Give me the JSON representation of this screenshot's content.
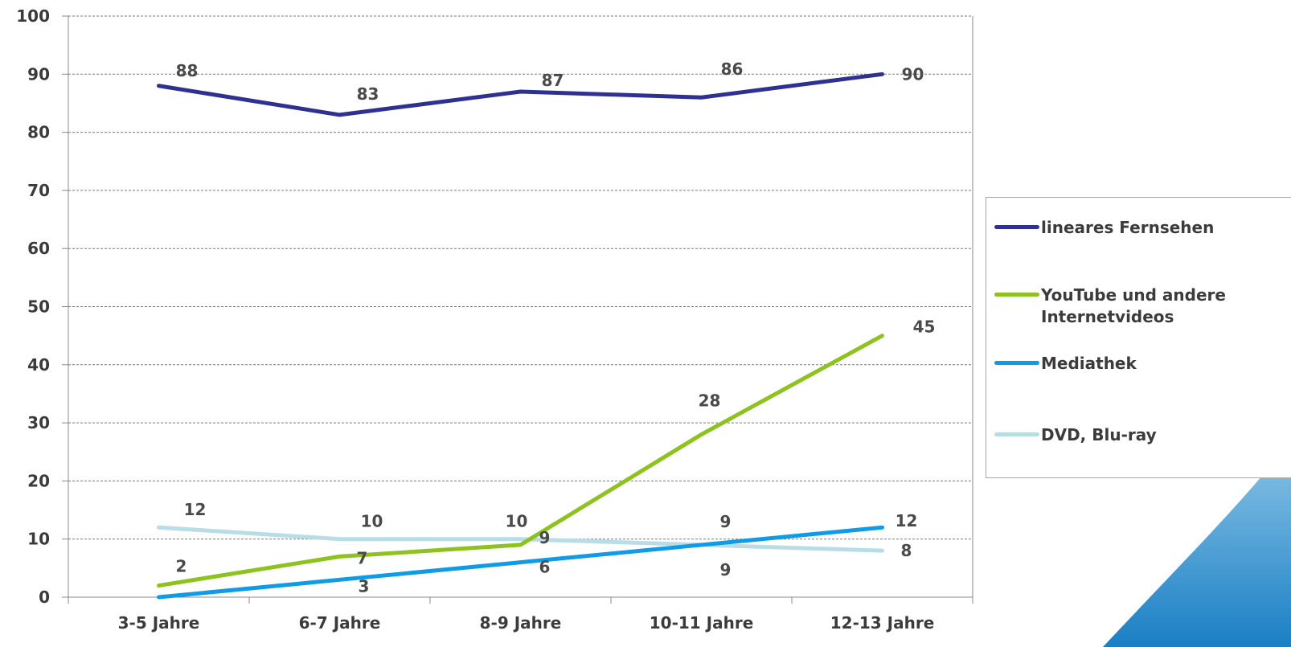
{
  "chart_data": {
    "type": "line",
    "categories": [
      "3-5 Jahre",
      "6-7 Jahre",
      "8-9 Jahre",
      "10-11 Jahre",
      "12-13 Jahre"
    ],
    "ylim": [
      0,
      100
    ],
    "yticks": [
      0,
      10,
      20,
      30,
      40,
      50,
      60,
      70,
      80,
      90,
      100
    ],
    "grid": true,
    "legend_position": "right",
    "series": [
      {
        "name": "lineares Fernsehen",
        "color": "#2e3192",
        "values": [
          88,
          83,
          87,
          86,
          90
        ]
      },
      {
        "name": "YouTube und andere Internetvideos",
        "color": "#8dc21f",
        "values": [
          2,
          7,
          9,
          28,
          45
        ]
      },
      {
        "name": "Mediathek",
        "color": "#0f9be6",
        "values": [
          0,
          3,
          6,
          9,
          12
        ]
      },
      {
        "name": "DVD, Blu-ray",
        "color": "#b8dde6",
        "values": [
          12,
          10,
          10,
          9,
          8
        ]
      }
    ]
  }
}
